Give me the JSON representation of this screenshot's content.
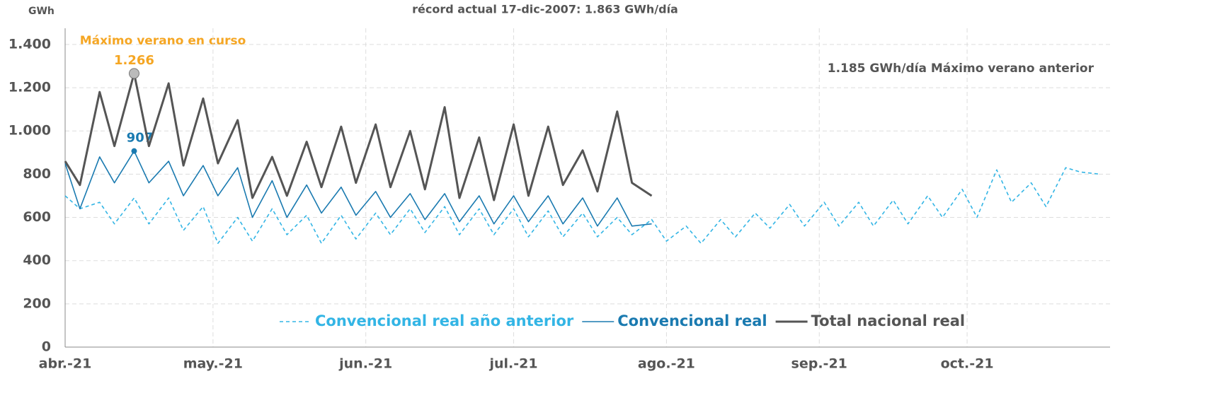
{
  "chart_data": {
    "type": "line",
    "title": "récord actual 17-dic-2007: 1.863 GWh/día",
    "y_label": "GWh",
    "annotations": [
      "Máximo verano en curso",
      "1.185 GWh/día Máximo verano anterior"
    ],
    "x": [
      0,
      3,
      7,
      10,
      14,
      17,
      21,
      24,
      28,
      31,
      35,
      38,
      42,
      45,
      49,
      52,
      56,
      59,
      63,
      66,
      70,
      73,
      77,
      80,
      84,
      87,
      91,
      94,
      98,
      101,
      105,
      108,
      112,
      115,
      119,
      122,
      126,
      129,
      133,
      136,
      140,
      143,
      147,
      150,
      154,
      157,
      161,
      164,
      168,
      171,
      175,
      178,
      182,
      185,
      189,
      192,
      196,
      199,
      203,
      206,
      210
    ],
    "xlim": [
      0,
      212
    ],
    "xticks": [
      {
        "value": 0,
        "label": "abr.-21"
      },
      {
        "value": 30,
        "label": "may.-21"
      },
      {
        "value": 61,
        "label": "jun.-21"
      },
      {
        "value": 91,
        "label": "jul.-21"
      },
      {
        "value": 122,
        "label": "ago.-21"
      },
      {
        "value": 153,
        "label": "sep.-21"
      },
      {
        "value": 183,
        "label": "oct.-21"
      }
    ],
    "ylim": [
      0,
      1475
    ],
    "yticks": [
      0,
      200,
      400,
      600,
      800,
      {
        "value": 1000,
        "label": "1.000"
      },
      {
        "value": 1200,
        "label": "1.200"
      },
      {
        "value": 1400,
        "label": "1.400"
      }
    ],
    "grid": true,
    "legend": "bottom",
    "series": [
      {
        "name": "Convencional real año anterior",
        "color": "#33b5e5",
        "dashed": true,
        "values": [
          700,
          640,
          670,
          570,
          690,
          570,
          690,
          540,
          650,
          480,
          600,
          490,
          640,
          520,
          610,
          480,
          610,
          500,
          620,
          520,
          640,
          530,
          650,
          520,
          640,
          520,
          640,
          510,
          630,
          510,
          620,
          510,
          600,
          520,
          590,
          490,
          560,
          480,
          590,
          510,
          620,
          550,
          660,
          560,
          670,
          560,
          670,
          560,
          680,
          570,
          700,
          600,
          730,
          600,
          820,
          670,
          760,
          650,
          830,
          810,
          800
        ]
      },
      {
        "name": "Convencional real",
        "color": "#1a7ab0",
        "values": [
          850,
          640,
          880,
          760,
          907,
          760,
          860,
          700,
          840,
          700,
          830,
          600,
          770,
          600,
          750,
          620,
          740,
          610,
          720,
          600,
          710,
          590,
          710,
          580,
          700,
          570,
          700,
          580,
          700,
          570,
          690,
          560,
          690,
          560,
          570,
          null,
          null,
          null,
          null,
          null,
          null,
          null,
          null,
          null,
          null,
          null,
          null,
          null,
          null,
          null,
          null,
          null,
          null,
          null,
          null,
          null,
          null,
          null,
          null,
          null,
          null
        ],
        "value_labels": [
          null,
          null,
          null,
          null,
          "907",
          null,
          null,
          null,
          null,
          null,
          null,
          null,
          null,
          null,
          null,
          null,
          null,
          null,
          null,
          null,
          null,
          null,
          null,
          null,
          null,
          null,
          null,
          null,
          null,
          null,
          null,
          null,
          null,
          null,
          null,
          null,
          null,
          null,
          null,
          null,
          null,
          null,
          null,
          null,
          null,
          null,
          null,
          null,
          null,
          null,
          null,
          null,
          null,
          null,
          null,
          null,
          null,
          null,
          null,
          null,
          null
        ]
      },
      {
        "name": "Total nacional real",
        "color": "#555555",
        "values": [
          860,
          750,
          1180,
          930,
          1266,
          930,
          1220,
          840,
          1150,
          850,
          1050,
          690,
          880,
          700,
          950,
          740,
          1020,
          760,
          1030,
          740,
          1000,
          730,
          1110,
          690,
          970,
          680,
          1030,
          700,
          1020,
          750,
          910,
          720,
          1090,
          760,
          700,
          null,
          null,
          null,
          null,
          null,
          null,
          null,
          null,
          null,
          null,
          null,
          null,
          null,
          null,
          null,
          null,
          null,
          null,
          null,
          null,
          null,
          null,
          null,
          null,
          null,
          null
        ],
        "value_labels": [
          null,
          null,
          null,
          null,
          "1.266",
          null,
          null,
          null,
          null,
          null,
          null,
          null,
          null,
          null,
          null,
          null,
          null,
          null,
          null,
          null,
          null,
          null,
          null,
          null,
          null,
          null,
          null,
          null,
          null,
          null,
          null,
          null,
          null,
          null,
          null,
          null,
          null,
          null,
          null,
          null,
          null,
          null,
          null,
          null,
          null,
          null,
          null,
          null,
          null,
          null,
          null,
          null,
          null,
          null,
          null,
          null,
          null,
          null,
          null,
          null,
          null
        ]
      }
    ]
  }
}
